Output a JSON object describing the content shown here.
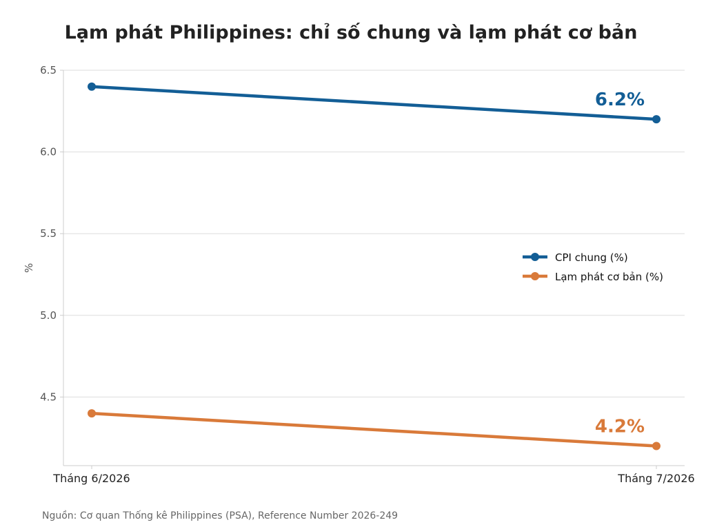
{
  "chart_data": {
    "type": "line",
    "title": "Lạm phát Philippines: chỉ số chung và lạm phát cơ bản",
    "xlabel": "",
    "ylabel": "%",
    "categories": [
      "Tháng 6/2026",
      "Tháng 7/2026"
    ],
    "ylim": [
      4.08,
      6.5
    ],
    "yticks": [
      4.5,
      5.0,
      5.5,
      6.0,
      6.5
    ],
    "ytick_labels": [
      "4.5",
      "5.0",
      "5.5",
      "6.0",
      "6.5"
    ],
    "grid": true,
    "legend_position": "right",
    "series": [
      {
        "name": "CPI chung (%)",
        "values": [
          6.4,
          6.2
        ],
        "color": "#135e96",
        "end_label": "6.2%"
      },
      {
        "name": "Lạm phát cơ bản (%)",
        "values": [
          4.4,
          4.2
        ],
        "color": "#d97a3a",
        "end_label": "4.2%"
      }
    ],
    "source": "Nguồn: Cơ quan Thống kê Philippines (PSA), Reference Number 2026-249"
  }
}
